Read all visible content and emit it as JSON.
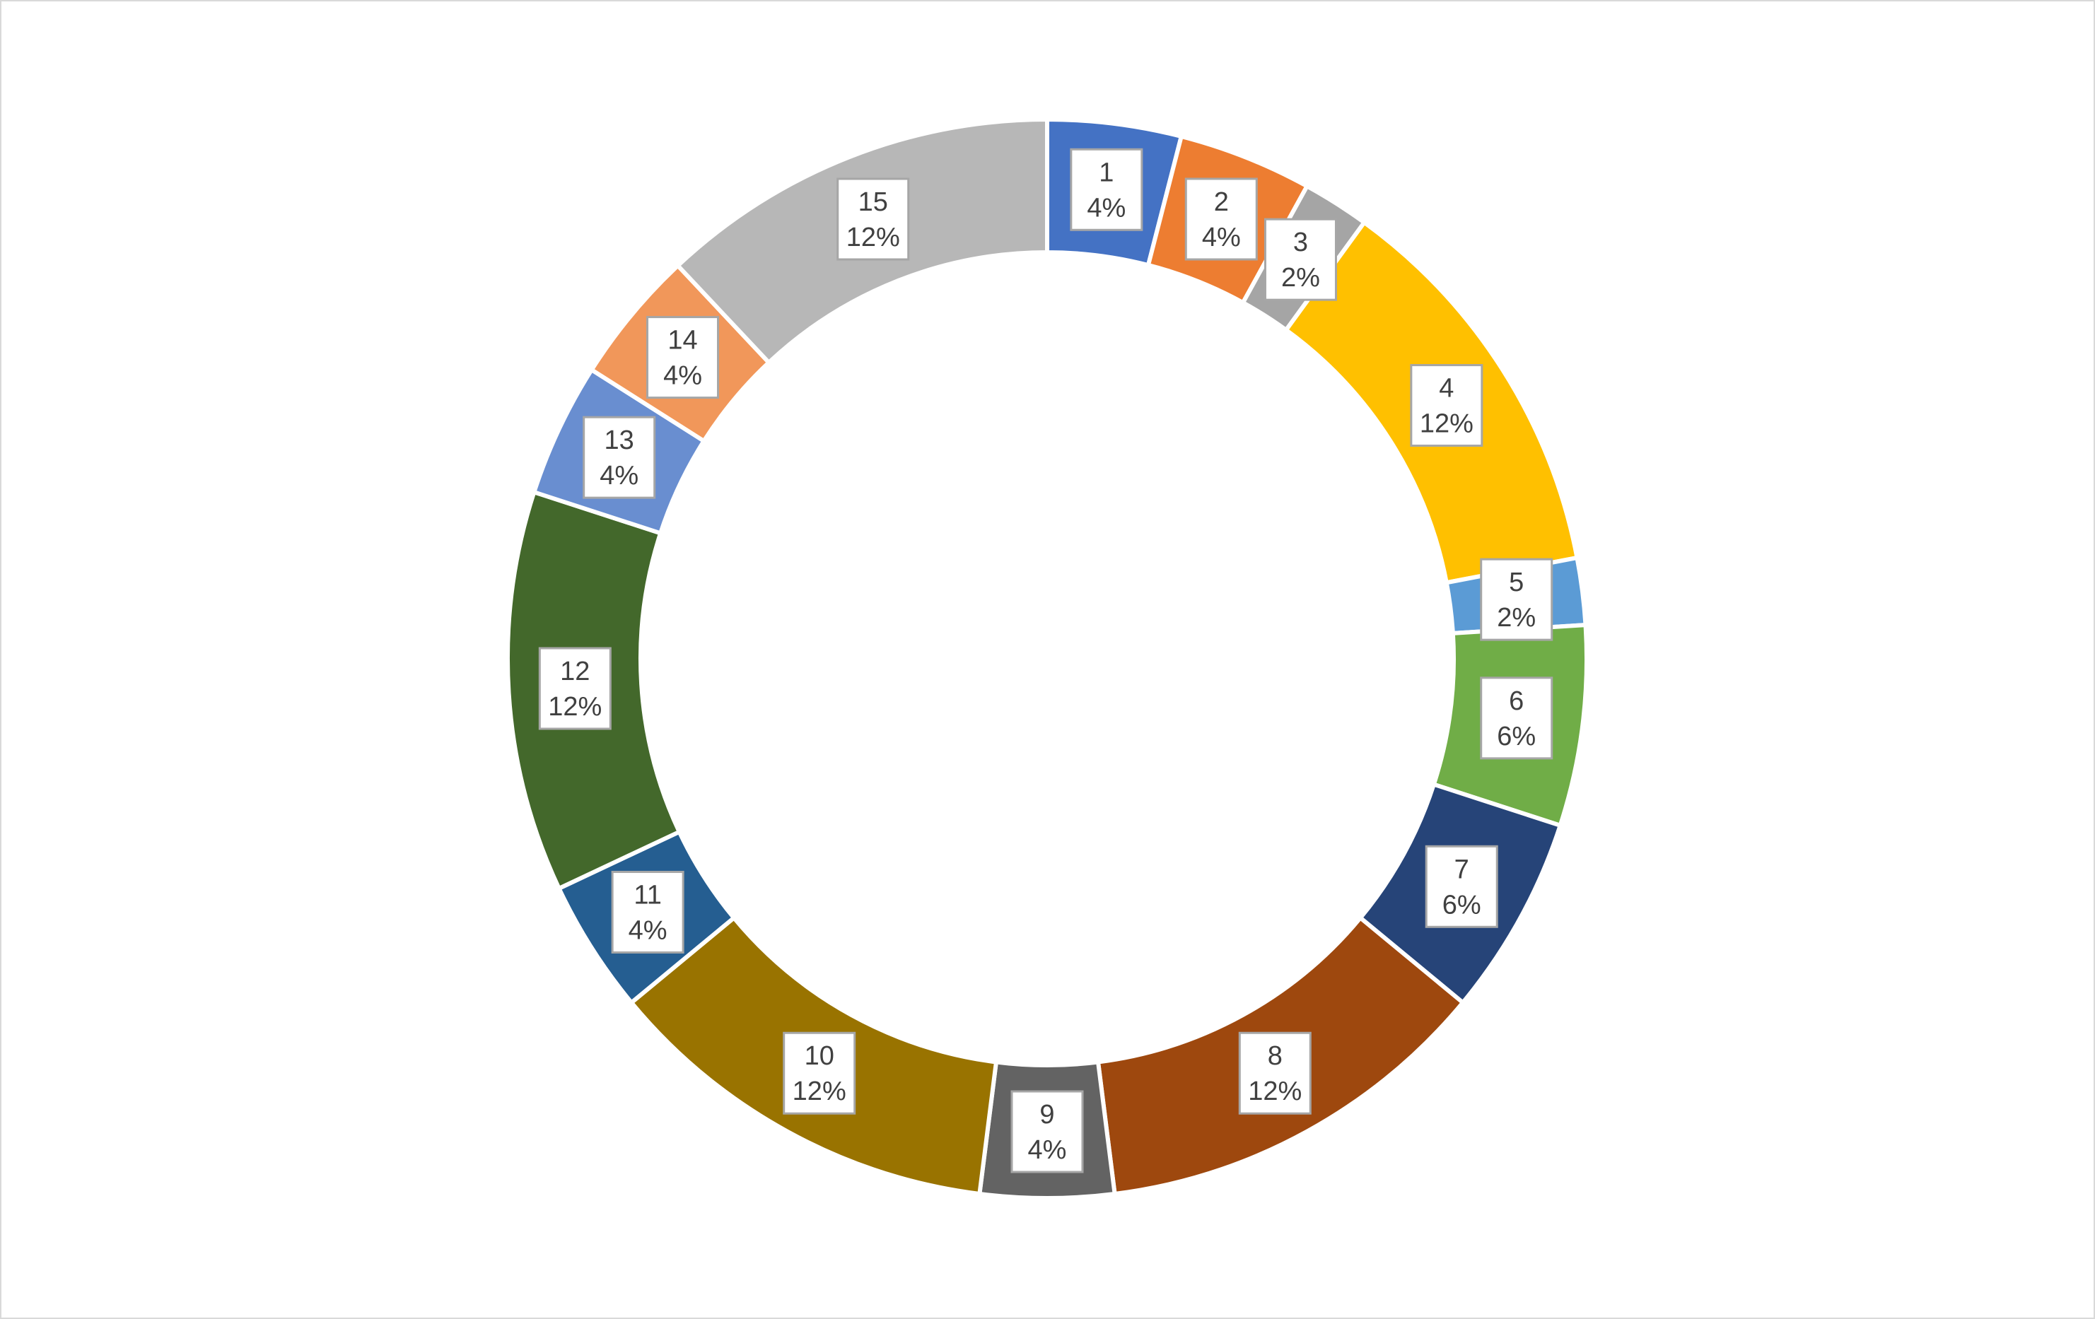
{
  "chart_data": {
    "type": "pie",
    "variant": "doughnut",
    "categories": [
      "1",
      "2",
      "3",
      "4",
      "5",
      "6",
      "7",
      "8",
      "9",
      "10",
      "11",
      "12",
      "13",
      "14",
      "15"
    ],
    "values": [
      4,
      4,
      2,
      12,
      2,
      6,
      6,
      12,
      4,
      12,
      4,
      12,
      4,
      4,
      12
    ],
    "percent_labels": [
      "4%",
      "4%",
      "2%",
      "12%",
      "2%",
      "6%",
      "6%",
      "12%",
      "4%",
      "12%",
      "4%",
      "12%",
      "4%",
      "4%",
      "12%"
    ],
    "colors": [
      "#4472C4",
      "#ED7D31",
      "#A5A5A5",
      "#FFC000",
      "#5B9BD5",
      "#70AD47",
      "#264478",
      "#9E480E",
      "#636363",
      "#997300",
      "#255E91",
      "#43682B",
      "#698ED0",
      "#F1975A",
      "#B7B7B7"
    ],
    "start_angle_deg": 0,
    "direction": "clockwise",
    "legend": "none",
    "title": ""
  }
}
